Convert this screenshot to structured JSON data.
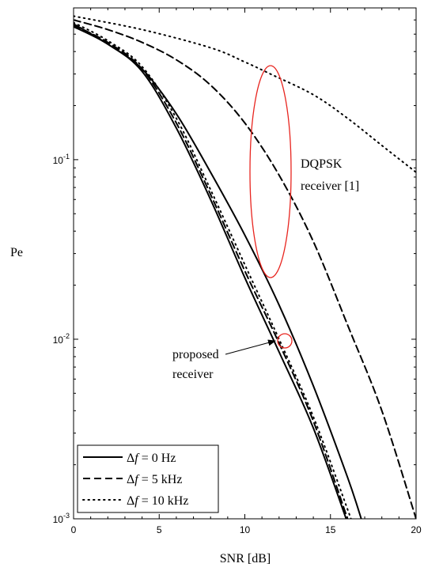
{
  "chart_data": {
    "type": "line",
    "title": "",
    "xlabel": "SNR [dB]",
    "ylabel": "Pe",
    "xlim": [
      0,
      20
    ],
    "ylim": [
      0.001,
      0.7
    ],
    "y_scale": "log",
    "grid": false,
    "legend_position": "bottom-left",
    "x_ticks": [
      {
        "value": 0,
        "label": "0"
      },
      {
        "value": 5,
        "label": "5"
      },
      {
        "value": 10,
        "label": "10"
      },
      {
        "value": 15,
        "label": "15"
      },
      {
        "value": 20,
        "label": "20"
      }
    ],
    "y_ticks": [
      {
        "value": 0.001,
        "base": "10",
        "exp": "-3"
      },
      {
        "value": 0.01,
        "base": "10",
        "exp": "-2"
      },
      {
        "value": 0.1,
        "base": "10",
        "exp": "-1"
      }
    ],
    "series": [
      {
        "name": "Δf = 0 Hz",
        "group": "DQPSK receiver [1]",
        "style": "solid",
        "x": [
          0,
          2,
          4,
          6,
          8,
          10,
          12,
          14,
          16,
          16.8
        ],
        "y": [
          0.57,
          0.44,
          0.32,
          0.18,
          0.085,
          0.038,
          0.0155,
          0.0055,
          0.0017,
          0.001
        ]
      },
      {
        "name": "Δf = 5 kHz",
        "group": "DQPSK receiver [1]",
        "style": "dashed",
        "x": [
          0,
          2,
          4,
          6,
          8,
          10,
          12,
          14,
          16,
          18,
          20
        ],
        "y": [
          0.6,
          0.53,
          0.45,
          0.36,
          0.26,
          0.16,
          0.082,
          0.035,
          0.012,
          0.004,
          0.001
        ]
      },
      {
        "name": "Δf = 10 kHz",
        "group": "DQPSK receiver [1]",
        "style": "dotted",
        "x": [
          0,
          4,
          8,
          10,
          11.5,
          14,
          16,
          18,
          20
        ],
        "y": [
          0.63,
          0.53,
          0.42,
          0.35,
          0.3,
          0.23,
          0.17,
          0.12,
          0.085
        ]
      },
      {
        "name": "Δf = 0 Hz",
        "group": "proposed receiver",
        "style": "solid",
        "x": [
          0,
          2,
          4,
          6,
          8,
          10,
          12,
          14,
          16
        ],
        "y": [
          0.55,
          0.44,
          0.31,
          0.15,
          0.06,
          0.022,
          0.0085,
          0.0032,
          0.00095
        ]
      },
      {
        "name": "Δf = 5 kHz",
        "group": "proposed receiver",
        "style": "dashed",
        "x": [
          0,
          2,
          4,
          6,
          8,
          10,
          12,
          14,
          16
        ],
        "y": [
          0.56,
          0.45,
          0.32,
          0.16,
          0.064,
          0.024,
          0.0095,
          0.0035,
          0.001
        ]
      },
      {
        "name": "Δf = 10 kHz",
        "group": "proposed receiver",
        "style": "dotted",
        "x": [
          0,
          2,
          4,
          6,
          8,
          10,
          12,
          14,
          16.2
        ],
        "y": [
          0.58,
          0.46,
          0.33,
          0.17,
          0.068,
          0.026,
          0.01,
          0.0037,
          0.001
        ]
      }
    ],
    "legend": [
      {
        "prefix": "Δ",
        "var": "f",
        "suffix": " = 0 Hz",
        "style": "solid"
      },
      {
        "prefix": "Δ",
        "var": "f",
        "suffix": " = 5 kHz",
        "style": "dashed"
      },
      {
        "prefix": "Δ",
        "var": "f",
        "suffix": " = 10 kHz",
        "style": "dotted"
      }
    ],
    "annotations": {
      "dqpsk": {
        "line1": "DQPSK",
        "line2": "receiver [1]"
      },
      "proposed": {
        "line1": "proposed",
        "line2": "receiver"
      }
    },
    "highlight_color": "#e8251f",
    "line_color": "#000000"
  }
}
